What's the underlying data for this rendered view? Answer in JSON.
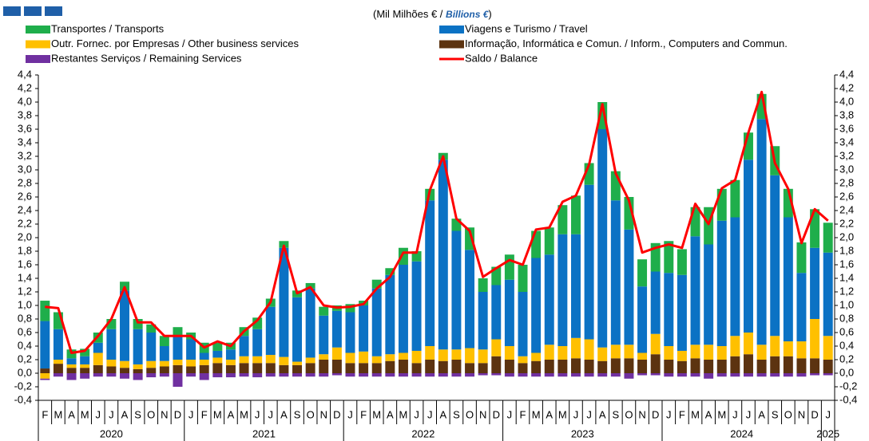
{
  "chart_data": {
    "type": "bar",
    "units": [
      "(Mil Milhões € / ",
      "Billions €",
      ")"
    ],
    "categories": [
      "F",
      "M",
      "A",
      "M",
      "J",
      "J",
      "A",
      "S",
      "O",
      "N",
      "D",
      "J",
      "F",
      "M",
      "A",
      "M",
      "J",
      "J",
      "A",
      "S",
      "O",
      "N",
      "D",
      "J",
      "F",
      "M",
      "A",
      "M",
      "J",
      "J",
      "A",
      "S",
      "O",
      "N",
      "D",
      "J",
      "F",
      "M",
      "A",
      "M",
      "J",
      "J",
      "A",
      "S",
      "O",
      "N",
      "D",
      "J",
      "F",
      "M",
      "A",
      "M",
      "J",
      "J",
      "A",
      "S",
      "O",
      "N",
      "D",
      "J"
    ],
    "years": [
      "2020",
      "2021",
      "2022",
      "2023",
      "2024",
      "2025"
    ],
    "series": [
      {
        "name": "Transportes / Transports",
        "color": "#1fae4b",
        "values": [
          0.3,
          0.25,
          0.13,
          0.11,
          0.15,
          0.15,
          0.13,
          0.15,
          0.12,
          0.15,
          0.13,
          0.1,
          0.15,
          0.12,
          0.1,
          0.13,
          0.17,
          0.12,
          0.1,
          0.1,
          0.08,
          0.13,
          0.08,
          0.12,
          0.07,
          0.13,
          0.1,
          0.25,
          0.15,
          0.17,
          0.1,
          0.18,
          0.33,
          0.2,
          0.27,
          0.37,
          0.4,
          0.4,
          0.4,
          0.43,
          0.57,
          0.32,
          0.4,
          0.43,
          0.48,
          0.4,
          0.42,
          0.47,
          0.38,
          0.43,
          0.55,
          0.47,
          0.55,
          0.4,
          0.37,
          0.43,
          0.42,
          0.45,
          0.57,
          0.44
        ]
      },
      {
        "name": "Viagens e Turismo / Travel",
        "color": "#0b72c4",
        "values": [
          0.7,
          0.45,
          0.09,
          0.12,
          0.15,
          0.45,
          1.04,
          0.52,
          0.42,
          0.22,
          0.35,
          0.3,
          0.1,
          0.1,
          0.15,
          0.3,
          0.4,
          0.71,
          1.61,
          0.95,
          1.02,
          0.57,
          0.54,
          0.6,
          0.68,
          1.0,
          1.17,
          1.3,
          1.32,
          2.15,
          2.8,
          1.75,
          1.45,
          0.85,
          0.8,
          0.98,
          0.95,
          1.4,
          1.33,
          1.65,
          1.53,
          2.28,
          3.22,
          2.13,
          1.7,
          0.98,
          0.92,
          1.08,
          1.12,
          1.6,
          1.48,
          1.85,
          1.75,
          2.55,
          3.33,
          2.37,
          1.83,
          1.01,
          1.05,
          1.23
        ]
      },
      {
        "name": "Outr. Fornec. por Empresas  / Other business services",
        "color": "#ffc000",
        "values": [
          -0.08,
          0.06,
          0.05,
          0.05,
          0.18,
          0.1,
          0.1,
          0.07,
          0.1,
          0.08,
          0.08,
          0.1,
          0.08,
          0.08,
          0.08,
          0.1,
          0.1,
          0.12,
          0.12,
          0.05,
          0.08,
          0.08,
          0.18,
          0.15,
          0.17,
          0.1,
          0.1,
          0.1,
          0.18,
          0.2,
          0.17,
          0.15,
          0.22,
          0.2,
          0.25,
          0.2,
          0.1,
          0.12,
          0.22,
          0.2,
          0.3,
          0.3,
          0.2,
          0.2,
          0.2,
          0.1,
          0.3,
          0.2,
          0.15,
          0.2,
          0.22,
          0.2,
          0.3,
          0.32,
          0.22,
          0.3,
          0.22,
          0.25,
          0.58,
          0.35
        ]
      },
      {
        "name": "Informação, Informática e Comun. / Inform., Computers and Commun.",
        "color": "#5c3310",
        "values": [
          0.07,
          0.14,
          0.08,
          0.08,
          0.12,
          0.1,
          0.08,
          0.06,
          0.08,
          0.1,
          0.12,
          0.1,
          0.12,
          0.15,
          0.12,
          0.15,
          0.15,
          0.15,
          0.12,
          0.12,
          0.15,
          0.2,
          0.2,
          0.15,
          0.15,
          0.15,
          0.18,
          0.2,
          0.15,
          0.2,
          0.18,
          0.2,
          0.15,
          0.15,
          0.25,
          0.2,
          0.15,
          0.18,
          0.2,
          0.2,
          0.22,
          0.2,
          0.18,
          0.22,
          0.22,
          0.2,
          0.28,
          0.2,
          0.18,
          0.22,
          0.2,
          0.2,
          0.25,
          0.28,
          0.2,
          0.25,
          0.25,
          0.22,
          0.22,
          0.2
        ]
      },
      {
        "name": "Restantes Serviços / Remaining Services",
        "color": "#7030a0",
        "values": [
          -0.02,
          -0.05,
          -0.1,
          -0.08,
          -0.05,
          -0.05,
          -0.08,
          -0.1,
          -0.06,
          -0.05,
          -0.2,
          -0.05,
          -0.1,
          -0.06,
          -0.06,
          -0.05,
          -0.06,
          -0.05,
          -0.05,
          -0.05,
          -0.05,
          -0.05,
          -0.03,
          -0.05,
          -0.05,
          -0.05,
          -0.05,
          -0.05,
          -0.05,
          -0.05,
          -0.05,
          -0.05,
          -0.05,
          -0.03,
          -0.03,
          -0.05,
          -0.05,
          -0.05,
          -0.05,
          -0.05,
          -0.05,
          -0.05,
          -0.05,
          -0.05,
          -0.08,
          -0.03,
          -0.03,
          -0.05,
          -0.05,
          -0.05,
          -0.08,
          -0.05,
          -0.05,
          -0.05,
          -0.05,
          -0.05,
          -0.05,
          -0.05,
          -0.03,
          -0.03
        ]
      },
      {
        "name": "Saldo / Balance",
        "color": "#ff0000",
        "type": "line",
        "values": [
          0.98,
          0.96,
          0.3,
          0.33,
          0.55,
          0.8,
          1.27,
          0.75,
          0.75,
          0.55,
          0.55,
          0.55,
          0.38,
          0.47,
          0.4,
          0.62,
          0.78,
          1.05,
          1.88,
          1.18,
          1.27,
          1.0,
          0.97,
          0.98,
          1.02,
          1.25,
          1.42,
          1.78,
          1.78,
          2.7,
          3.2,
          2.28,
          2.1,
          1.42,
          1.55,
          1.67,
          1.6,
          2.12,
          2.15,
          2.53,
          2.62,
          3.08,
          3.97,
          2.95,
          2.55,
          1.78,
          1.85,
          1.9,
          1.85,
          2.5,
          2.2,
          2.73,
          2.85,
          3.55,
          4.15,
          3.1,
          2.72,
          1.92,
          2.42,
          2.25
        ]
      }
    ],
    "ylim": [
      -0.4,
      4.4
    ],
    "yticks": [
      {
        "value": -0.4,
        "label": "-0,4"
      },
      {
        "value": -0.2,
        "label": "-0,2"
      },
      {
        "value": 0,
        "label": "0,0"
      },
      {
        "value": 0.2,
        "label": "0,2"
      },
      {
        "value": 0.4,
        "label": "0,4"
      },
      {
        "value": 0.6,
        "label": "0,6"
      },
      {
        "value": 0.8,
        "label": "0,8"
      },
      {
        "value": 1.0,
        "label": "1,0"
      },
      {
        "value": 1.2,
        "label": "1,2"
      },
      {
        "value": 1.4,
        "label": "1,4"
      },
      {
        "value": 1.6,
        "label": "1,6"
      },
      {
        "value": 1.8,
        "label": "1,8"
      },
      {
        "value": 2.0,
        "label": "2,0"
      },
      {
        "value": 2.2,
        "label": "2,2"
      },
      {
        "value": 2.4,
        "label": "2,4"
      },
      {
        "value": 2.6,
        "label": "2,6"
      },
      {
        "value": 2.8,
        "label": "2,8"
      },
      {
        "value": 3.0,
        "label": "3,0"
      },
      {
        "value": 3.2,
        "label": "3,2"
      },
      {
        "value": 3.4,
        "label": "3,4"
      },
      {
        "value": 3.6,
        "label": "3,6"
      },
      {
        "value": 3.8,
        "label": "3,8"
      },
      {
        "value": 4.0,
        "label": "4,0"
      },
      {
        "value": 4.2,
        "label": "4,2"
      },
      {
        "value": 4.4,
        "label": "4,4"
      }
    ],
    "grid": false
  }
}
